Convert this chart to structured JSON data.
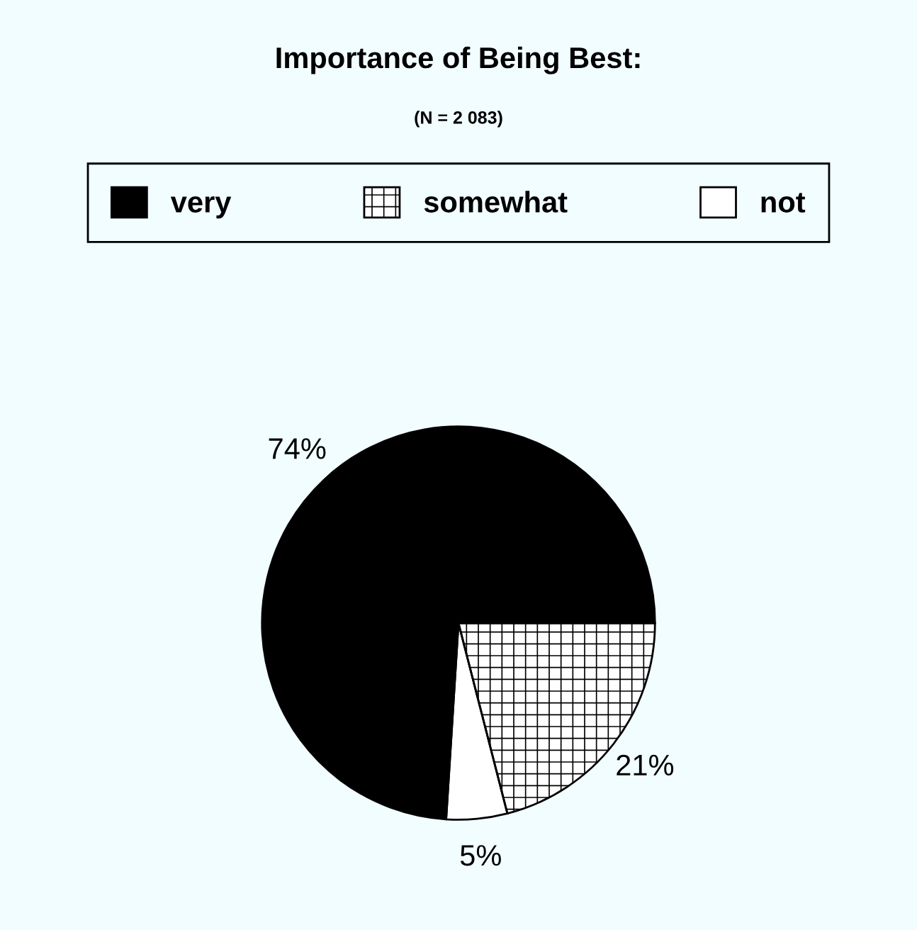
{
  "chart_data": {
    "type": "pie",
    "title": "Importance of Being Best:",
    "subtitle": "(N = 2 083)",
    "categories": [
      "very",
      "somewhat",
      "not"
    ],
    "values": [
      74,
      21,
      5
    ],
    "colors": [
      "#000000",
      "#ffffff",
      "#ffffff"
    ],
    "value_labels": [
      "74%",
      "21%",
      "5%"
    ],
    "legend": "top"
  }
}
